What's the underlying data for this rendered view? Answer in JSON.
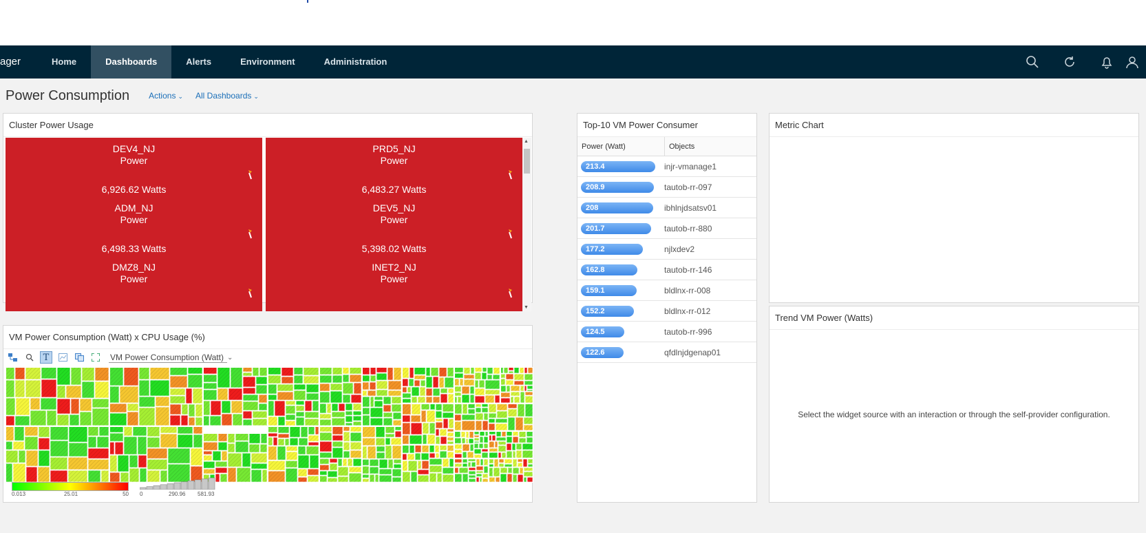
{
  "nav": {
    "brand": "ager",
    "tabs": [
      "Home",
      "Dashboards",
      "Alerts",
      "Environment",
      "Administration"
    ],
    "active_tab": "Dashboards"
  },
  "header": {
    "title": "Power Consumption",
    "actions_label": "Actions",
    "all_dashboards_label": "All Dashboards"
  },
  "cluster": {
    "title": "Cluster Power Usage",
    "metric": "Power",
    "tiles": [
      {
        "name": "DEV4_NJ",
        "value": "6,926.62 Watts"
      },
      {
        "name": "PRD5_NJ",
        "value": "6,483.27 Watts"
      },
      {
        "name": "ADM_NJ",
        "value": "6,498.33 Watts"
      },
      {
        "name": "DEV5_NJ",
        "value": "5,398.02 Watts"
      },
      {
        "name": "DMZ8_NJ",
        "value": ""
      },
      {
        "name": "INET2_NJ",
        "value": ""
      }
    ]
  },
  "top10": {
    "title": "Top-10 VM Power Consumer",
    "col_power": "Power (Watt)",
    "col_objects": "Objects",
    "rows": [
      {
        "value": "213.4",
        "object": "injr-vmanage1",
        "level": 213.4
      },
      {
        "value": "208.9",
        "object": "tautob-rr-097",
        "level": 208.9
      },
      {
        "value": "208",
        "object": "ibhlnjdsatsv01",
        "level": 208
      },
      {
        "value": "201.7",
        "object": "tautob-rr-880",
        "level": 201.7
      },
      {
        "value": "177.2",
        "object": "njlxdev2",
        "level": 177.2
      },
      {
        "value": "162.8",
        "object": "tautob-rr-146",
        "level": 162.8
      },
      {
        "value": "159.1",
        "object": "bldlnx-rr-008",
        "level": 159.1
      },
      {
        "value": "152.2",
        "object": "bldlnx-rr-012",
        "level": 152.2
      },
      {
        "value": "124.5",
        "object": "tautob-rr-996",
        "level": 124.5
      },
      {
        "value": "122.6",
        "object": "qfdlnjdgenap01",
        "level": 122.6
      }
    ]
  },
  "metric_chart": {
    "title": "Metric Chart"
  },
  "treemap": {
    "title": "VM Power Consumption (Watt) x CPU Usage (%)",
    "selector": "VM Power Consumption (Watt)",
    "color_legend": [
      "0.013",
      "25.01",
      "50"
    ],
    "size_legend": [
      "0",
      "290.96",
      "581.93"
    ]
  },
  "trend": {
    "title": "Trend VM Power (Watts)",
    "message": "Select the widget source with an interaction or through the self-provider configuration."
  }
}
